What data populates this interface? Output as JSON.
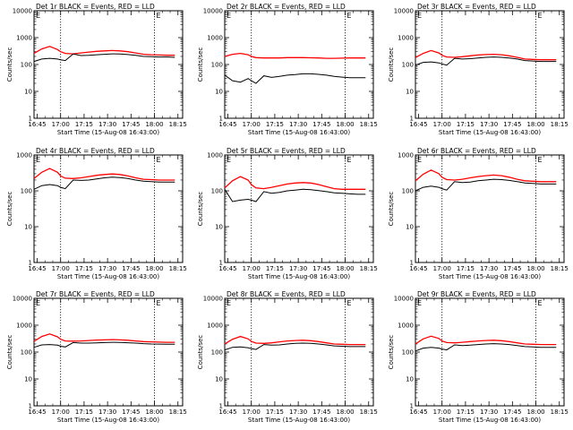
{
  "chart_data": [
    {
      "type": "line",
      "title": "Det 1r BLACK = Events, RED = LLD",
      "xlabel": "Start Time (15-Aug-08 16:43:00)",
      "ylabel": "Counts/sec",
      "yscale": "log",
      "ylim": [
        1,
        10000
      ],
      "ytick_labels": [
        "1",
        "10",
        "100",
        "1000",
        "10000"
      ],
      "x_tick_labels": [
        "16:45",
        "17:00",
        "17:15",
        "17:30",
        "17:45",
        "18:00",
        "18:15"
      ],
      "x_minutes": [
        0,
        5,
        10,
        15,
        17,
        20,
        25,
        30,
        35,
        40,
        45,
        50,
        55,
        60,
        65,
        70,
        75,
        80,
        85,
        90
      ],
      "vlines": [
        "17:00",
        "18:00"
      ],
      "vline_label": "E",
      "series": [
        {
          "name": "LLD",
          "color": "#ff0000",
          "values": [
            260,
            380,
            470,
            360,
            300,
            260,
            250,
            270,
            290,
            310,
            320,
            330,
            320,
            300,
            270,
            240,
            230,
            225,
            220,
            220
          ]
        },
        {
          "name": "Events",
          "color": "#000000",
          "values": [
            130,
            160,
            170,
            160,
            150,
            140,
            245,
            215,
            220,
            230,
            240,
            250,
            245,
            235,
            220,
            200,
            195,
            190,
            190,
            185
          ]
        }
      ]
    },
    {
      "type": "line",
      "title": "Det 2r BLACK = Events, RED = LLD",
      "xlabel": "Start Time (15-Aug-08 16:43:00)",
      "ylabel": "Counts/sec",
      "yscale": "log",
      "ylim": [
        1,
        10000
      ],
      "ytick_labels": [
        "1",
        "10",
        "100",
        "1000",
        "10000"
      ],
      "x_tick_labels": [
        "16:45",
        "17:00",
        "17:15",
        "17:30",
        "17:45",
        "18:00",
        "18:15"
      ],
      "x_minutes": [
        0,
        5,
        10,
        15,
        17,
        20,
        25,
        30,
        35,
        40,
        45,
        50,
        55,
        60,
        65,
        70,
        75,
        80,
        85,
        90
      ],
      "vlines": [
        "17:00",
        "18:00"
      ],
      "vline_label": "E",
      "series": [
        {
          "name": "LLD",
          "color": "#ff0000",
          "values": [
            200,
            240,
            260,
            230,
            200,
            180,
            175,
            175,
            175,
            180,
            180,
            180,
            178,
            175,
            170,
            170,
            172,
            175,
            175,
            175
          ]
        },
        {
          "name": "Events",
          "color": "#000000",
          "values": [
            40,
            25,
            22,
            30,
            25,
            20,
            38,
            33,
            36,
            40,
            42,
            45,
            45,
            43,
            40,
            36,
            34,
            32,
            32,
            32
          ]
        }
      ]
    },
    {
      "type": "line",
      "title": "Det 3r BLACK = Events, RED = LLD",
      "xlabel": "Start Time (15-Aug-08 16:43:00)",
      "ylabel": "Counts/sec",
      "yscale": "log",
      "ylim": [
        1,
        10000
      ],
      "ytick_labels": [
        "1",
        "10",
        "100",
        "1000",
        "10000"
      ],
      "x_tick_labels": [
        "16:45",
        "17:00",
        "17:15",
        "17:30",
        "17:45",
        "18:00",
        "18:15"
      ],
      "x_minutes": [
        0,
        5,
        10,
        15,
        17,
        20,
        25,
        30,
        35,
        40,
        45,
        50,
        55,
        60,
        65,
        70,
        75,
        80,
        85,
        90
      ],
      "vlines": [
        "17:00",
        "18:00"
      ],
      "vline_label": "E",
      "series": [
        {
          "name": "LLD",
          "color": "#ff0000",
          "values": [
            180,
            260,
            330,
            270,
            220,
            190,
            185,
            195,
            210,
            225,
            235,
            240,
            230,
            210,
            185,
            160,
            155,
            150,
            150,
            150
          ]
        },
        {
          "name": "Events",
          "color": "#000000",
          "values": [
            95,
            120,
            125,
            115,
            105,
            95,
            170,
            160,
            165,
            175,
            185,
            190,
            185,
            175,
            160,
            140,
            135,
            130,
            130,
            130
          ]
        }
      ]
    },
    {
      "type": "line",
      "title": "Det 4r BLACK = Events, RED = LLD",
      "xlabel": "Start Time (15-Aug-08 16:43:00)",
      "ylabel": "Counts/sec",
      "yscale": "log",
      "ylim": [
        1,
        1000
      ],
      "ytick_labels": [
        "1",
        "10",
        "100",
        "1000"
      ],
      "x_tick_labels": [
        "16:45",
        "17:00",
        "17:15",
        "17:30",
        "17:45",
        "18:00",
        "18:15"
      ],
      "x_minutes": [
        0,
        5,
        10,
        15,
        17,
        20,
        25,
        30,
        35,
        40,
        45,
        50,
        55,
        60,
        65,
        70,
        75,
        80,
        85,
        90
      ],
      "vlines": [
        "17:00",
        "18:00"
      ],
      "vline_label": "E",
      "series": [
        {
          "name": "LLD",
          "color": "#ff0000",
          "values": [
            220,
            330,
            420,
            330,
            260,
            225,
            220,
            230,
            250,
            270,
            285,
            295,
            285,
            260,
            230,
            210,
            205,
            200,
            200,
            200
          ]
        },
        {
          "name": "Events",
          "color": "#000000",
          "values": [
            110,
            140,
            150,
            140,
            125,
            115,
            200,
            195,
            200,
            215,
            230,
            240,
            235,
            220,
            200,
            185,
            180,
            175,
            175,
            175
          ]
        }
      ]
    },
    {
      "type": "line",
      "title": "Det 5r BLACK = Events, RED = LLD",
      "xlabel": "Start Time (15-Aug-08 16:43:00)",
      "ylabel": "Counts/sec",
      "yscale": "log",
      "ylim": [
        1,
        1000
      ],
      "ytick_labels": [
        "1",
        "10",
        "100",
        "1000"
      ],
      "x_tick_labels": [
        "16:45",
        "17:00",
        "17:15",
        "17:30",
        "17:45",
        "18:00",
        "18:15"
      ],
      "x_minutes": [
        0,
        5,
        10,
        15,
        17,
        20,
        25,
        30,
        35,
        40,
        45,
        50,
        55,
        60,
        65,
        70,
        75,
        80,
        85,
        90
      ],
      "vlines": [
        "17:00",
        "18:00"
      ],
      "vline_label": "E",
      "series": [
        {
          "name": "LLD",
          "color": "#ff0000",
          "values": [
            120,
            190,
            250,
            200,
            150,
            120,
            115,
            125,
            140,
            155,
            165,
            170,
            165,
            150,
            130,
            115,
            110,
            110,
            110,
            110
          ]
        },
        {
          "name": "Events",
          "color": "#000000",
          "values": [
            110,
            50,
            55,
            58,
            55,
            50,
            95,
            85,
            90,
            100,
            105,
            110,
            108,
            102,
            95,
            88,
            85,
            82,
            80,
            80
          ]
        }
      ]
    },
    {
      "type": "line",
      "title": "Det 6r BLACK = Events, RED = LLD",
      "xlabel": "Start Time (15-Aug-08 16:43:00)",
      "ylabel": "Counts/sec",
      "yscale": "log",
      "ylim": [
        1,
        1000
      ],
      "ytick_labels": [
        "1",
        "10",
        "100",
        "1000"
      ],
      "x_tick_labels": [
        "16:45",
        "17:00",
        "17:15",
        "17:30",
        "17:45",
        "18:00",
        "18:15"
      ],
      "x_minutes": [
        0,
        5,
        10,
        15,
        17,
        20,
        25,
        30,
        35,
        40,
        45,
        50,
        55,
        60,
        65,
        70,
        75,
        80,
        85,
        90
      ],
      "vlines": [
        "17:00",
        "18:00"
      ],
      "vline_label": "E",
      "series": [
        {
          "name": "LLD",
          "color": "#ff0000",
          "values": [
            190,
            290,
            380,
            300,
            240,
            205,
            200,
            210,
            230,
            250,
            265,
            275,
            265,
            240,
            210,
            190,
            185,
            180,
            180,
            180
          ]
        },
        {
          "name": "Events",
          "color": "#000000",
          "values": [
            100,
            125,
            135,
            125,
            115,
            105,
            180,
            170,
            175,
            190,
            200,
            210,
            205,
            195,
            180,
            165,
            160,
            155,
            155,
            155
          ]
        }
      ]
    },
    {
      "type": "line",
      "title": "Det 7r BLACK = Events, RED = LLD",
      "xlabel": "Start Time (15-Aug-08 16:43:00)",
      "ylabel": "Counts/sec",
      "yscale": "log",
      "ylim": [
        1,
        10000
      ],
      "ytick_labels": [
        "1",
        "10",
        "100",
        "1000",
        "10000"
      ],
      "x_tick_labels": [
        "16:45",
        "17:00",
        "17:15",
        "17:30",
        "17:45",
        "18:00",
        "18:15"
      ],
      "x_minutes": [
        0,
        5,
        10,
        15,
        17,
        20,
        25,
        30,
        35,
        40,
        45,
        50,
        55,
        60,
        65,
        70,
        75,
        80,
        85,
        90
      ],
      "vlines": [
        "17:00",
        "18:00"
      ],
      "vline_label": "E",
      "series": [
        {
          "name": "LLD",
          "color": "#ff0000",
          "values": [
            250,
            380,
            470,
            370,
            300,
            260,
            255,
            260,
            270,
            280,
            285,
            290,
            285,
            275,
            260,
            245,
            240,
            235,
            230,
            230
          ]
        },
        {
          "name": "Events",
          "color": "#000000",
          "values": [
            150,
            185,
            190,
            180,
            165,
            155,
            225,
            215,
            215,
            220,
            225,
            230,
            228,
            222,
            215,
            205,
            200,
            198,
            195,
            195
          ]
        }
      ]
    },
    {
      "type": "line",
      "title": "Det 8r BLACK = Events, RED = LLD",
      "xlabel": "Start Time (15-Aug-08 16:43:00)",
      "ylabel": "Counts/sec",
      "yscale": "log",
      "ylim": [
        1,
        10000
      ],
      "ytick_labels": [
        "1",
        "10",
        "100",
        "1000",
        "10000"
      ],
      "x_tick_labels": [
        "16:45",
        "17:00",
        "17:15",
        "17:30",
        "17:45",
        "18:00",
        "18:15"
      ],
      "x_minutes": [
        0,
        5,
        10,
        15,
        17,
        20,
        25,
        30,
        35,
        40,
        45,
        50,
        55,
        60,
        65,
        70,
        75,
        80,
        85,
        90
      ],
      "vlines": [
        "17:00",
        "18:00"
      ],
      "vline_label": "E",
      "series": [
        {
          "name": "LLD",
          "color": "#ff0000",
          "values": [
            200,
            300,
            380,
            310,
            250,
            215,
            210,
            220,
            240,
            260,
            270,
            275,
            265,
            245,
            220,
            200,
            195,
            190,
            190,
            190
          ]
        },
        {
          "name": "Events",
          "color": "#000000",
          "values": [
            120,
            150,
            155,
            145,
            135,
            125,
            190,
            180,
            185,
            200,
            210,
            215,
            210,
            200,
            185,
            170,
            165,
            160,
            160,
            160
          ]
        }
      ]
    },
    {
      "type": "line",
      "title": "Det 9r BLACK = Events, RED = LLD",
      "xlabel": "Start Time (15-Aug-08 16:43:00)",
      "ylabel": "Counts/sec",
      "yscale": "log",
      "ylim": [
        1,
        10000
      ],
      "ytick_labels": [
        "1",
        "10",
        "100",
        "1000",
        "10000"
      ],
      "x_tick_labels": [
        "16:45",
        "17:00",
        "17:15",
        "17:30",
        "17:45",
        "18:00",
        "18:15"
      ],
      "x_minutes": [
        0,
        5,
        10,
        15,
        17,
        20,
        25,
        30,
        35,
        40,
        45,
        50,
        55,
        60,
        65,
        70,
        75,
        80,
        85,
        90
      ],
      "vlines": [
        "17:00",
        "18:00"
      ],
      "vline_label": "E",
      "series": [
        {
          "name": "LLD",
          "color": "#ff0000",
          "values": [
            200,
            310,
            390,
            320,
            260,
            225,
            220,
            230,
            245,
            260,
            270,
            275,
            265,
            245,
            220,
            200,
            195,
            190,
            190,
            190
          ]
        },
        {
          "name": "Events",
          "color": "#000000",
          "values": [
            110,
            140,
            150,
            140,
            130,
            120,
            185,
            175,
            180,
            190,
            200,
            205,
            200,
            190,
            175,
            160,
            155,
            150,
            150,
            150
          ]
        }
      ]
    }
  ]
}
